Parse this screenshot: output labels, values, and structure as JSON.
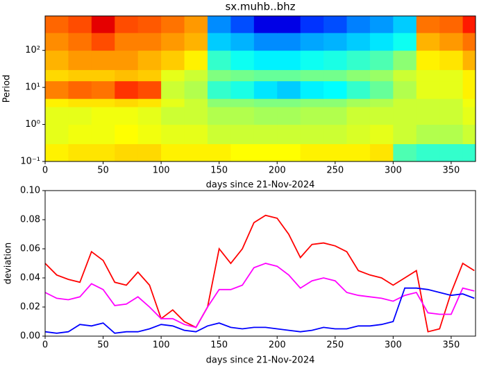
{
  "chart_data": [
    {
      "type": "heatmap",
      "title": "sx.muhb..bhz",
      "xlabel": "days since 21-Nov-2024",
      "ylabel": "Period",
      "colormap": "jet",
      "log_y": true,
      "x_edges": [
        0,
        20,
        40,
        60,
        80,
        100,
        120,
        140,
        160,
        180,
        200,
        220,
        240,
        260,
        280,
        300,
        320,
        340,
        360,
        371
      ],
      "y_edges": [
        0.1,
        0.3,
        1,
        3,
        5,
        15,
        30,
        100,
        300,
        850
      ],
      "z": [
        [
          0.55,
          0.56,
          0.56,
          0.57,
          0.57,
          0.55,
          0.55,
          0.55,
          0.54,
          0.54,
          0.54,
          0.55,
          0.55,
          0.55,
          0.56,
          0.4,
          0.38,
          0.38,
          0.38
        ],
        [
          0.52,
          0.53,
          0.53,
          0.54,
          0.53,
          0.52,
          0.52,
          0.5,
          0.5,
          0.5,
          0.5,
          0.5,
          0.5,
          0.51,
          0.52,
          0.5,
          0.48,
          0.48,
          0.5
        ],
        [
          0.52,
          0.52,
          0.53,
          0.53,
          0.52,
          0.5,
          0.5,
          0.48,
          0.48,
          0.47,
          0.47,
          0.48,
          0.48,
          0.5,
          0.5,
          0.5,
          0.5,
          0.5,
          0.52
        ],
        [
          0.55,
          0.56,
          0.56,
          0.57,
          0.56,
          0.52,
          0.5,
          0.45,
          0.45,
          0.44,
          0.44,
          0.45,
          0.45,
          0.47,
          0.48,
          0.5,
          0.5,
          0.5,
          0.53
        ],
        [
          0.64,
          0.66,
          0.65,
          0.7,
          0.68,
          0.5,
          0.48,
          0.38,
          0.36,
          0.32,
          0.3,
          0.33,
          0.34,
          0.38,
          0.42,
          0.48,
          0.52,
          0.52,
          0.55
        ],
        [
          0.57,
          0.58,
          0.58,
          0.59,
          0.58,
          0.52,
          0.5,
          0.44,
          0.43,
          0.42,
          0.42,
          0.43,
          0.43,
          0.45,
          0.46,
          0.5,
          0.52,
          0.52,
          0.55
        ],
        [
          0.6,
          0.62,
          0.62,
          0.62,
          0.6,
          0.58,
          0.55,
          0.38,
          0.35,
          0.33,
          0.33,
          0.35,
          0.36,
          0.38,
          0.4,
          0.45,
          0.55,
          0.56,
          0.6
        ],
        [
          0.63,
          0.65,
          0.68,
          0.64,
          0.64,
          0.62,
          0.6,
          0.3,
          0.28,
          0.25,
          0.25,
          0.27,
          0.28,
          0.3,
          0.32,
          0.35,
          0.6,
          0.62,
          0.65
        ],
        [
          0.66,
          0.68,
          0.76,
          0.68,
          0.67,
          0.65,
          0.62,
          0.25,
          0.2,
          0.12,
          0.12,
          0.18,
          0.2,
          0.24,
          0.26,
          0.3,
          0.65,
          0.66,
          0.72
        ]
      ],
      "xlim": [
        0,
        371
      ],
      "xticks": [
        0,
        50,
        100,
        150,
        200,
        250,
        300,
        350
      ],
      "ylim": [
        0.1,
        850
      ],
      "yticks": [
        {
          "value": 0.1,
          "label": "10⁻¹"
        },
        {
          "value": 1,
          "label": "10⁰"
        },
        {
          "value": 10,
          "label": "10¹"
        },
        {
          "value": 100,
          "label": "10²"
        }
      ]
    },
    {
      "type": "line",
      "xlabel": "days since 21-Nov-2024",
      "ylabel": "deviation",
      "x": [
        0,
        10,
        20,
        30,
        40,
        50,
        60,
        70,
        80,
        90,
        100,
        110,
        120,
        130,
        140,
        150,
        160,
        170,
        180,
        190,
        200,
        210,
        220,
        230,
        240,
        250,
        260,
        270,
        280,
        290,
        300,
        310,
        320,
        330,
        340,
        350,
        360,
        370
      ],
      "series": [
        {
          "color": "#ff0000",
          "values": [
            0.05,
            0.042,
            0.039,
            0.037,
            0.058,
            0.052,
            0.037,
            0.035,
            0.044,
            0.035,
            0.012,
            0.018,
            0.01,
            0.006,
            0.02,
            0.06,
            0.05,
            0.06,
            0.078,
            0.083,
            0.081,
            0.07,
            0.054,
            0.063,
            0.064,
            0.062,
            0.058,
            0.045,
            0.042,
            0.04,
            0.035,
            0.04,
            0.045,
            0.003,
            0.005,
            0.03,
            0.05,
            0.045
          ]
        },
        {
          "color": "#ff00ff",
          "values": [
            0.03,
            0.026,
            0.025,
            0.027,
            0.036,
            0.032,
            0.021,
            0.022,
            0.027,
            0.02,
            0.012,
            0.012,
            0.008,
            0.006,
            0.02,
            0.032,
            0.032,
            0.035,
            0.047,
            0.05,
            0.048,
            0.042,
            0.033,
            0.038,
            0.04,
            0.038,
            0.03,
            0.028,
            0.027,
            0.026,
            0.024,
            0.028,
            0.03,
            0.016,
            0.015,
            0.015,
            0.033,
            0.031
          ]
        },
        {
          "color": "#0000ff",
          "values": [
            0.003,
            0.002,
            0.003,
            0.008,
            0.007,
            0.009,
            0.002,
            0.003,
            0.003,
            0.005,
            0.008,
            0.007,
            0.004,
            0.003,
            0.007,
            0.009,
            0.006,
            0.005,
            0.006,
            0.006,
            0.005,
            0.004,
            0.003,
            0.004,
            0.006,
            0.005,
            0.005,
            0.007,
            0.007,
            0.008,
            0.01,
            0.033,
            0.033,
            0.032,
            0.03,
            0.028,
            0.029,
            0.026
          ]
        }
      ],
      "xlim": [
        0,
        371
      ],
      "xticks": [
        0,
        50,
        100,
        150,
        200,
        250,
        300,
        350
      ],
      "ylim": [
        0,
        0.1
      ],
      "yticks": [
        {
          "value": 0,
          "label": "0.00"
        },
        0.02,
        0.04,
        0.06,
        0.08,
        {
          "value": 0.1,
          "label": "0.10"
        }
      ]
    }
  ]
}
